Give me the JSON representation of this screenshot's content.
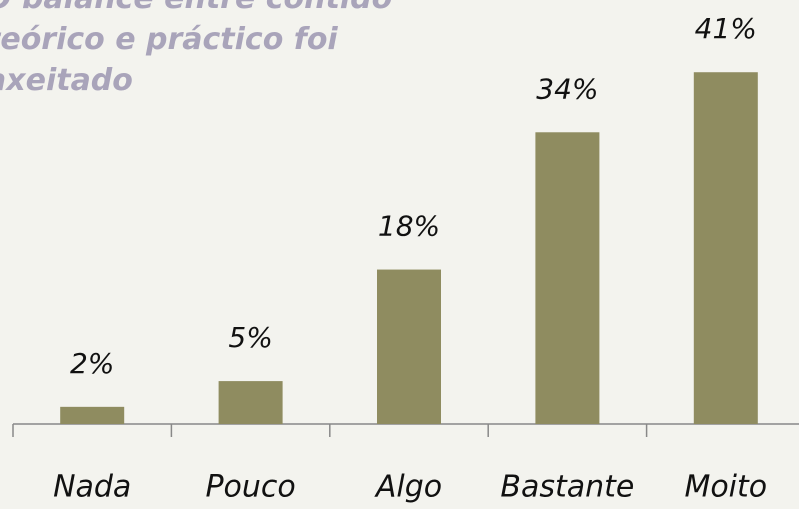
{
  "chart_data": {
    "type": "bar",
    "title": "O balance entre contido teórico e práctico foi axeitado",
    "categories": [
      "Nada",
      "Pouco",
      "Algo",
      "Bastante",
      "Moito"
    ],
    "values": [
      2,
      5,
      18,
      34,
      41
    ],
    "value_labels": [
      "2%",
      "5%",
      "18%",
      "34%",
      "41%"
    ],
    "color": "#8f8c60",
    "ylim": [
      0,
      50
    ]
  }
}
